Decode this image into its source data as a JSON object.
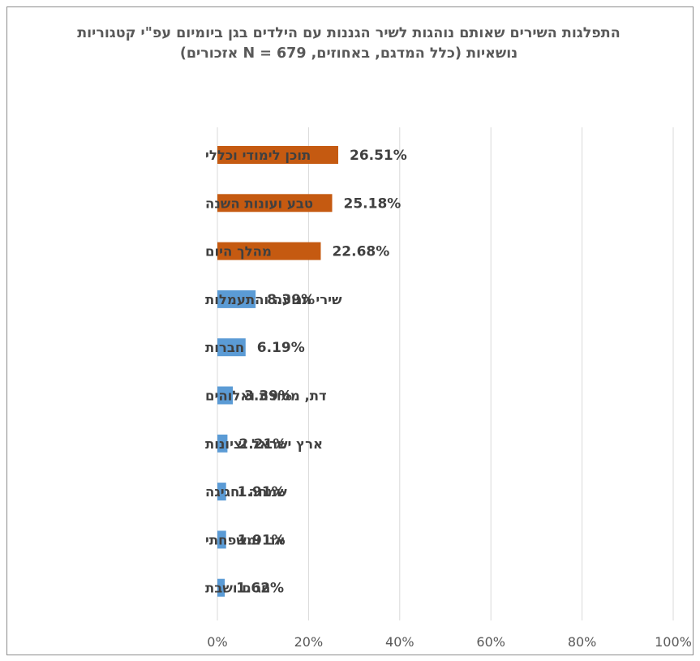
{
  "chart_data": {
    "type": "bar",
    "orientation": "horizontal",
    "title": "התפלגות השירים שאותם נוהגות לשיר הגננות  עם הילדים בגן ביומיום עפ\"י קטגוריות נושאיות (כלל המדגם, באחוזים, N = 679 אזכורים)",
    "categories": [
      "תוכן לימודי  וכללי",
      "טבע ועונות  השנה",
      "מהלך היום",
      "שירי  תנועה  והתעמלות",
      "חברות",
      "דת,  מסורת  ואלוהים",
      "ארץ  ישראל  וציונות",
      "שמחה  וחגיגה",
      "אני  ומשפחתי",
      "חגים  ושבת"
    ],
    "values": [
      26.51,
      25.18,
      22.68,
      8.39,
      6.19,
      3.39,
      2.21,
      1.91,
      1.91,
      1.62
    ],
    "value_labels": [
      "26.51%",
      "25.18%",
      "22.68%",
      "8.39%",
      "6.19%",
      "3.39%",
      "2.21%",
      "1.91%",
      "1.91%",
      "1.62%"
    ],
    "highlighted": [
      true,
      true,
      true,
      false,
      false,
      false,
      false,
      false,
      false,
      false
    ],
    "colors": {
      "highlight": "#c55a11",
      "default": "#5b9bd5",
      "gridline": "#d9d9d9"
    },
    "xlim": [
      0,
      100
    ],
    "x_ticks": [
      "0%",
      "20%",
      "40%",
      "60%",
      "80%",
      "100%"
    ],
    "x_tick_values": [
      0,
      20,
      40,
      60,
      80,
      100
    ],
    "xlabel": "",
    "ylabel": "",
    "grid": "vertical",
    "legend": "none"
  }
}
